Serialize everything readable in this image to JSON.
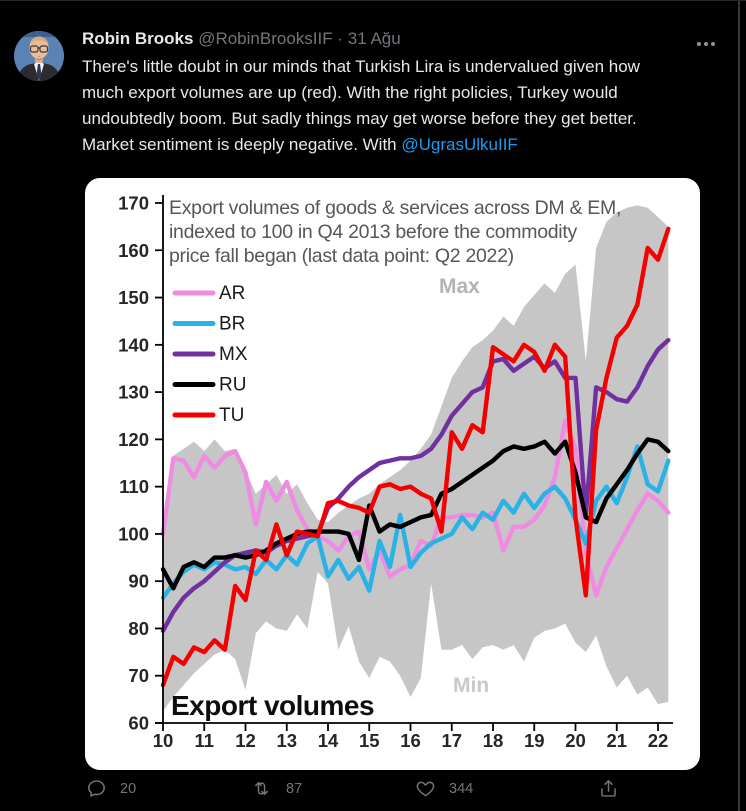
{
  "tweet": {
    "author": "Robin Brooks",
    "handle": "@RobinBrooksIIF",
    "separator": "·",
    "date": "31 Ağu",
    "body_lines": [
      "There's little doubt in our minds that Turkish Lira is undervalued given how",
      "much export volumes are up (red). With the right policies, Turkey would",
      "undoubtedly boom. But sadly things may get worse before they get better."
    ],
    "last_line_before": "Market sentiment is deeply negative. With ",
    "mention": "@UgrasUlkuIIF"
  },
  "engagement": {
    "replies": "20",
    "retweets": "87",
    "likes": "344"
  },
  "chart_data": {
    "type": "line",
    "title_lines": [
      "Export volumes of goods & services across DM & EM,",
      "indexed to 100 in Q4 2013  before the commodity",
      "price fall began (last data point: Q2 2022)"
    ],
    "annotation": "Export volumes",
    "x_start": "2010Q1",
    "x_end": "2022Q2",
    "points_per_year": 4,
    "x_tick_labels": [
      "10",
      "11",
      "12",
      "13",
      "14",
      "15",
      "16",
      "17",
      "18",
      "19",
      "20",
      "21",
      "22"
    ],
    "y_ticks": [
      60,
      70,
      80,
      90,
      100,
      110,
      120,
      130,
      140,
      150,
      160,
      170
    ],
    "ylim": [
      60,
      170
    ],
    "grid": false,
    "legend_position": "top-left",
    "band": {
      "name": "Max/Min range across DM & EM",
      "color": "#c6c6c6",
      "max_label": "Max",
      "min_label": "Min",
      "max": [
        103,
        116.5,
        118,
        119.5,
        117.5,
        120,
        117.5,
        118,
        113.5,
        108.5,
        110.5,
        112.5,
        108.5,
        110.5,
        106.5,
        103,
        102.5,
        104.5,
        106,
        107.5,
        108.5,
        110.5,
        112,
        113.5,
        115.5,
        118,
        121,
        127,
        133,
        136.5,
        139.5,
        141,
        143,
        146,
        144,
        148,
        150.5,
        153,
        151,
        155,
        157,
        136.5,
        160.5,
        166,
        168,
        169,
        169.5,
        169,
        167,
        165
      ],
      "min": [
        62.5,
        65.5,
        68,
        70.5,
        72.5,
        74.5,
        75.5,
        73.5,
        67,
        79,
        81.5,
        80,
        79.5,
        83,
        80,
        92,
        89.5,
        75.5,
        80.5,
        73,
        69.5,
        74,
        73,
        70,
        65.5,
        69.5,
        89.5,
        75.5,
        75.5,
        76.5,
        73.5,
        76,
        76.5,
        75.5,
        76.5,
        73,
        78,
        79.5,
        80,
        81,
        77,
        75,
        78.5,
        72,
        67.5,
        70,
        66,
        67.5,
        64,
        64.5
      ]
    },
    "series": [
      {
        "name": "AR",
        "color": "#ef8be0",
        "values": [
          100,
          116,
          115.5,
          112,
          116.5,
          114,
          116.5,
          117.5,
          113,
          102,
          111,
          107,
          111,
          105,
          101,
          99.5,
          98.5,
          96.5,
          99.5,
          100.5,
          92.5,
          96.5,
          91,
          92.5,
          93.5,
          98.5,
          97.5,
          103.5,
          103.5,
          104,
          104,
          103.5,
          104.5,
          96.5,
          101.5,
          101.5,
          103,
          106,
          112,
          124,
          118,
          96,
          87,
          93,
          97,
          101,
          105,
          108.5,
          107,
          104.5
        ]
      },
      {
        "name": "BR",
        "color": "#29b2e5",
        "values": [
          86.5,
          89.5,
          92,
          93.5,
          92.5,
          94,
          93.5,
          92.5,
          93,
          91.5,
          94.5,
          92.5,
          95.5,
          93.5,
          98,
          99.5,
          91,
          94.5,
          90.5,
          93,
          88,
          98.5,
          93,
          104,
          93,
          96,
          98,
          99,
          100,
          103.5,
          101,
          104.5,
          103,
          107,
          104.5,
          108.5,
          105.5,
          108.5,
          110,
          107.5,
          103,
          98,
          107,
          110,
          106.5,
          112,
          118.5,
          110.5,
          109,
          115.5
        ]
      },
      {
        "name": "MX",
        "color": "#7030a0",
        "values": [
          79.5,
          83.5,
          86.5,
          88.5,
          90,
          92,
          94,
          95.5,
          96,
          96.5,
          96,
          97.5,
          98.5,
          99,
          99.5,
          100,
          105.5,
          107.5,
          110,
          112,
          113.5,
          115,
          115.5,
          116,
          116,
          116.5,
          118,
          121,
          125,
          127.5,
          130,
          131,
          136.5,
          137,
          134.5,
          136,
          137.5,
          135,
          136.5,
          133,
          133,
          104,
          131,
          130,
          128.5,
          128,
          131,
          135.5,
          139,
          141
        ]
      },
      {
        "name": "RU",
        "color": "#000000",
        "values": [
          92.5,
          88.5,
          93,
          94,
          93,
          95,
          95,
          95.5,
          95,
          95.5,
          96.5,
          98,
          99,
          100,
          100.5,
          100.5,
          100.5,
          100.5,
          100,
          94.5,
          106,
          100.5,
          102,
          101.5,
          102.5,
          103.5,
          104,
          108.5,
          109.5,
          111,
          112.5,
          114,
          115.5,
          117.5,
          118.5,
          118,
          118.5,
          119.5,
          117,
          119.5,
          113,
          103.5,
          102.5,
          107.5,
          110.5,
          113.5,
          117,
          120,
          119.5,
          117.5
        ]
      },
      {
        "name": "TU",
        "color": "#f40000",
        "values": [
          68,
          74,
          72.5,
          76,
          75,
          77.5,
          75.5,
          89,
          86,
          96.5,
          94.5,
          102,
          95.5,
          100.5,
          100,
          99.5,
          106.5,
          107,
          106,
          105.5,
          104.5,
          110,
          110.5,
          109.5,
          110,
          108.5,
          107.5,
          100.5,
          121.5,
          118,
          123,
          121.5,
          139.5,
          138,
          136.5,
          140,
          138.5,
          134.5,
          140,
          137.5,
          103.5,
          87,
          122,
          133,
          141.5,
          144,
          148.5,
          160.5,
          158,
          164.5
        ]
      }
    ],
    "text_colors": {
      "title": "#575757",
      "ticks": "#262626",
      "legend": "#1a1a1a",
      "max_label": "#b3b3b3",
      "min_label": "#c9c9c9",
      "annotation": "#0d0d0d"
    }
  }
}
